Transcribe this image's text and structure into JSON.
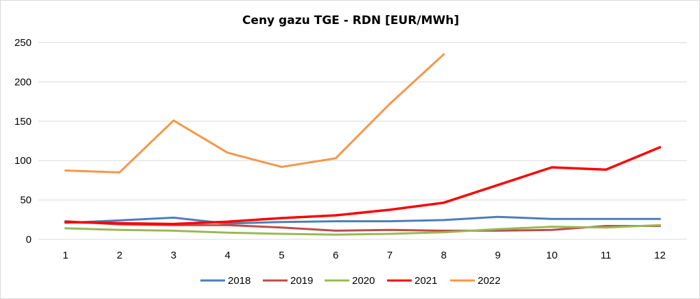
{
  "chart_data": {
    "type": "line",
    "title": "Ceny gazu TGE - RDN [EUR/MWh]",
    "xlabel": "",
    "ylabel": "",
    "x": [
      1,
      2,
      3,
      4,
      5,
      6,
      7,
      8,
      9,
      10,
      11,
      12
    ],
    "ylim": [
      0,
      250
    ],
    "yticks": [
      0,
      50,
      100,
      150,
      200,
      250
    ],
    "grid": "horizontal",
    "legend_position": "bottom",
    "series": [
      {
        "name": "2018",
        "color": "#4a7ebb",
        "values": [
          21,
          24,
          27.5,
          20,
          22,
          23,
          23,
          24.5,
          28.5,
          26,
          26,
          26
        ]
      },
      {
        "name": "2019",
        "color": "#be4b48",
        "values": [
          23,
          19,
          18,
          18,
          15,
          11,
          12,
          11,
          11,
          12,
          17,
          17
        ]
      },
      {
        "name": "2020",
        "color": "#98b954",
        "values": [
          14,
          12,
          11,
          8.5,
          7,
          6,
          7,
          9,
          13,
          16,
          15,
          18
        ]
      },
      {
        "name": "2021",
        "color": "#ff0000",
        "values": [
          22,
          20.5,
          19.5,
          22.5,
          27,
          30.5,
          37.5,
          46.5,
          69,
          91.5,
          88.5,
          117
        ]
      },
      {
        "name": "2022",
        "color": "#f79646",
        "values": [
          87.5,
          85,
          151,
          110,
          92,
          103,
          172,
          235,
          null,
          null,
          null,
          null
        ]
      }
    ]
  }
}
